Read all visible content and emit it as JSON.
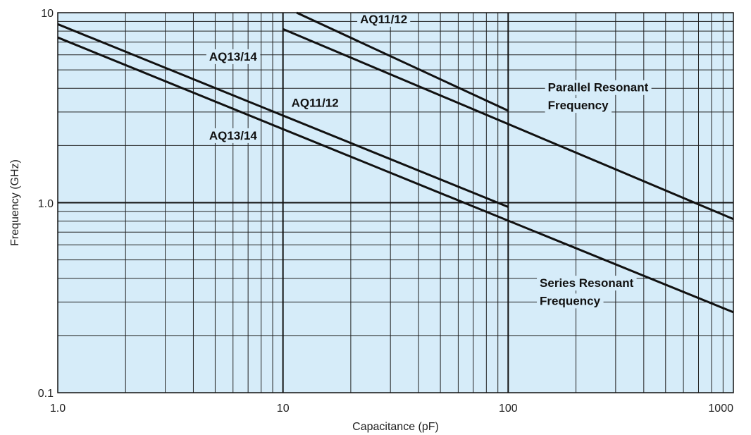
{
  "chart_data": {
    "type": "line",
    "xscale": "log",
    "yscale": "log",
    "xlim": [
      1,
      1000
    ],
    "ylim": [
      0.1,
      10
    ],
    "xlabel": "Capacitance (pF)",
    "ylabel": "Frequency (GHz)",
    "x_tick_labels": [
      "1.0",
      "10",
      "100",
      "1000"
    ],
    "y_tick_labels": [
      "0.1",
      "1.0",
      "10"
    ],
    "grid": true,
    "background_color": "#d6ecf9",
    "line_color": "#111111",
    "series": [
      {
        "name": "AQ11/12",
        "group": "Series Resonant Frequency",
        "x": [
          1,
          100
        ],
        "y": [
          8.7,
          0.95
        ]
      },
      {
        "name": "AQ13/14",
        "group": "Series Resonant Frequency",
        "x": [
          1,
          1000
        ],
        "y": [
          7.4,
          0.265
        ]
      },
      {
        "name": "AQ11/12",
        "group": "Parallel Resonant Frequency",
        "x": [
          11.5,
          100
        ],
        "y": [
          10,
          3.05
        ]
      },
      {
        "name": "AQ13/14",
        "group": "Parallel Resonant Frequency",
        "x": [
          10,
          1000
        ],
        "y": [
          8.2,
          0.82
        ]
      }
    ],
    "annotations": [
      {
        "text": "AQ11/12",
        "x": 22,
        "y": 8.8
      },
      {
        "text": "AQ13/14",
        "x": 4.7,
        "y": 5.6
      },
      {
        "text": "Parallel Resonant",
        "x": 150,
        "y": 3.85
      },
      {
        "text": "Frequency",
        "x": 150,
        "y": 3.1
      },
      {
        "text": "AQ11/12",
        "x": 10.9,
        "y": 3.2
      },
      {
        "text": "AQ13/14",
        "x": 4.7,
        "y": 2.15
      },
      {
        "text": "Series Resonant",
        "x": 138,
        "y": 0.36
      },
      {
        "text": "Frequency",
        "x": 138,
        "y": 0.29
      }
    ]
  }
}
